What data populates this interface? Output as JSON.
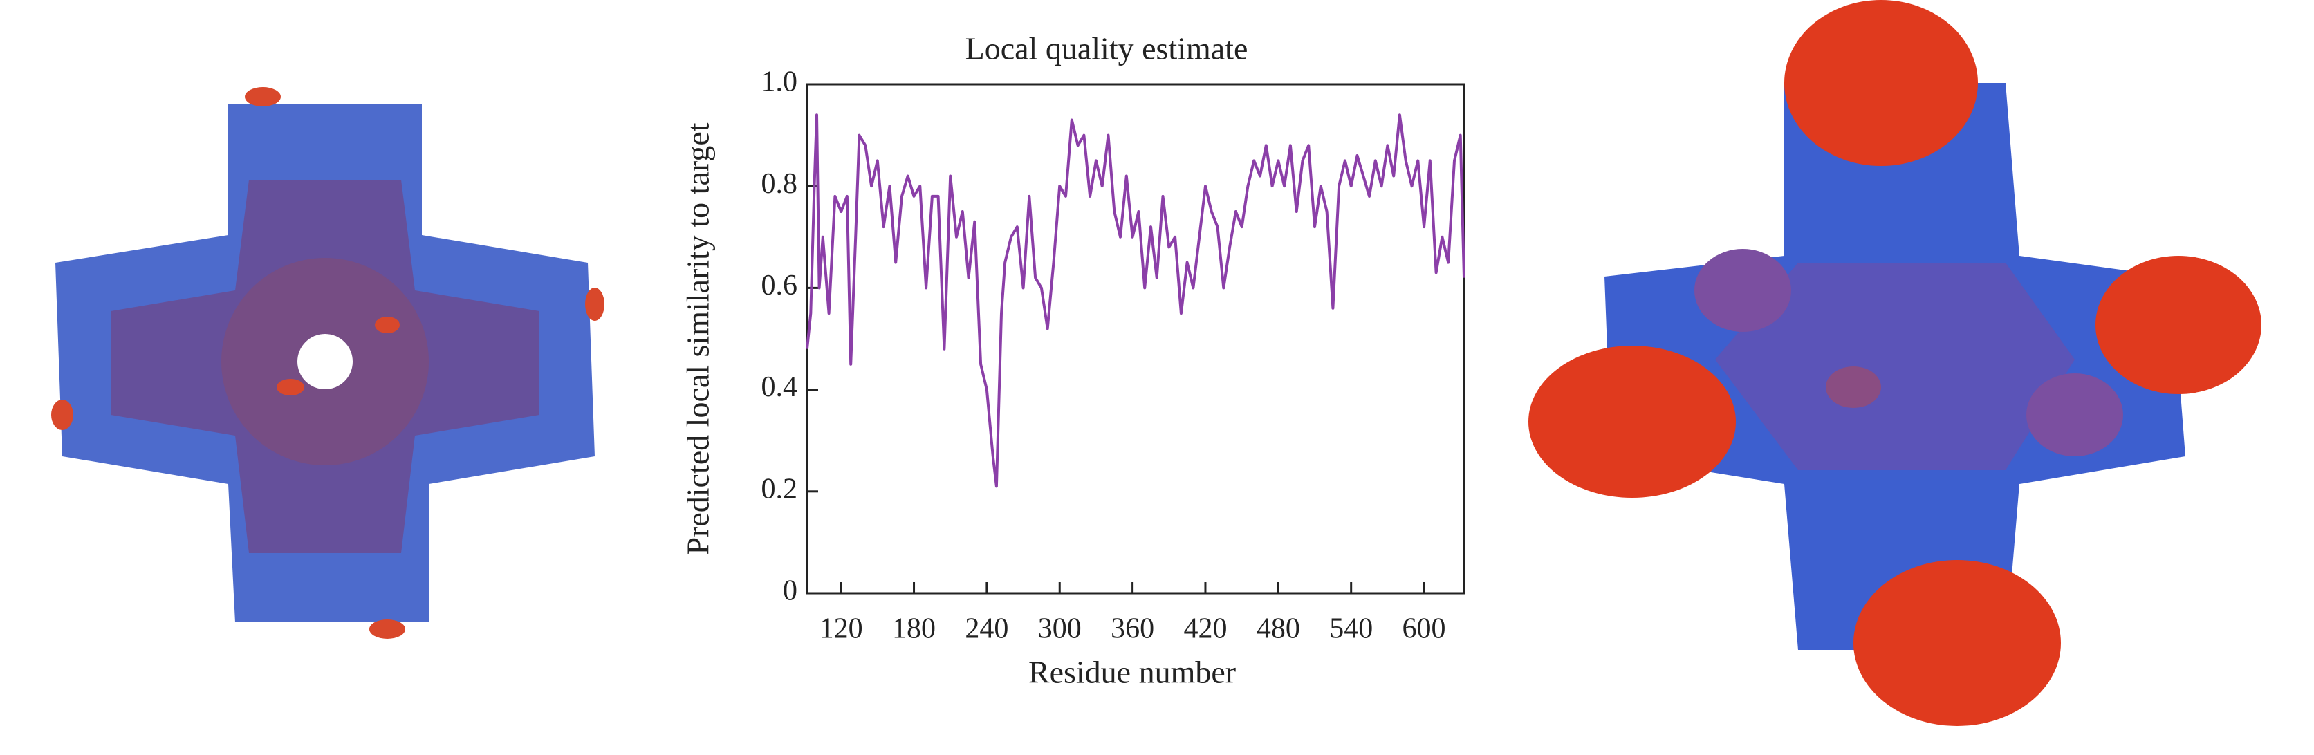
{
  "chart_data": {
    "type": "line",
    "title": "Local quality estimate",
    "xlabel": "Residue number",
    "ylabel": "Predicted local similarity to target",
    "color": "#8b3fa8",
    "xlim": [
      92,
      633
    ],
    "xticks": [
      120,
      180,
      240,
      300,
      360,
      420,
      480,
      540,
      600
    ],
    "ylim": [
      0,
      1
    ],
    "yticks": [
      0,
      0.2,
      0.4,
      0.6,
      0.8,
      {
        "value": 1,
        "label": "1.0"
      }
    ],
    "x": [
      92,
      95,
      98,
      100,
      102,
      105,
      110,
      115,
      120,
      125,
      128,
      132,
      135,
      140,
      145,
      150,
      155,
      160,
      165,
      170,
      175,
      180,
      185,
      190,
      195,
      200,
      205,
      210,
      215,
      220,
      225,
      230,
      235,
      240,
      245,
      248,
      252,
      255,
      260,
      265,
      270,
      275,
      280,
      285,
      290,
      295,
      300,
      305,
      310,
      315,
      320,
      325,
      330,
      335,
      340,
      345,
      350,
      355,
      360,
      365,
      370,
      375,
      380,
      385,
      390,
      395,
      400,
      405,
      410,
      415,
      420,
      425,
      430,
      435,
      440,
      445,
      450,
      455,
      460,
      465,
      470,
      475,
      480,
      485,
      490,
      495,
      500,
      505,
      510,
      515,
      520,
      525,
      530,
      535,
      540,
      545,
      550,
      555,
      560,
      565,
      570,
      575,
      580,
      585,
      590,
      595,
      600,
      605,
      610,
      615,
      620,
      625,
      630,
      633
    ],
    "values": [
      0.48,
      0.55,
      0.8,
      0.94,
      0.6,
      0.7,
      0.55,
      0.78,
      0.75,
      0.78,
      0.45,
      0.7,
      0.9,
      0.88,
      0.8,
      0.85,
      0.72,
      0.8,
      0.65,
      0.78,
      0.82,
      0.78,
      0.8,
      0.6,
      0.78,
      0.78,
      0.48,
      0.82,
      0.7,
      0.75,
      0.62,
      0.73,
      0.45,
      0.4,
      0.27,
      0.21,
      0.55,
      0.65,
      0.7,
      0.72,
      0.6,
      0.78,
      0.62,
      0.6,
      0.52,
      0.65,
      0.8,
      0.78,
      0.93,
      0.88,
      0.9,
      0.78,
      0.85,
      0.8,
      0.9,
      0.75,
      0.7,
      0.82,
      0.7,
      0.75,
      0.6,
      0.72,
      0.62,
      0.78,
      0.68,
      0.7,
      0.55,
      0.65,
      0.6,
      0.7,
      0.8,
      0.75,
      0.72,
      0.6,
      0.68,
      0.75,
      0.72,
      0.8,
      0.85,
      0.82,
      0.88,
      0.8,
      0.85,
      0.8,
      0.88,
      0.75,
      0.85,
      0.88,
      0.72,
      0.8,
      0.75,
      0.56,
      0.8,
      0.85,
      0.8,
      0.86,
      0.82,
      0.78,
      0.85,
      0.8,
      0.88,
      0.82,
      0.94,
      0.85,
      0.8,
      0.85,
      0.72,
      0.85,
      0.63,
      0.7,
      0.65,
      0.85,
      0.9,
      0.62
    ]
  }
}
